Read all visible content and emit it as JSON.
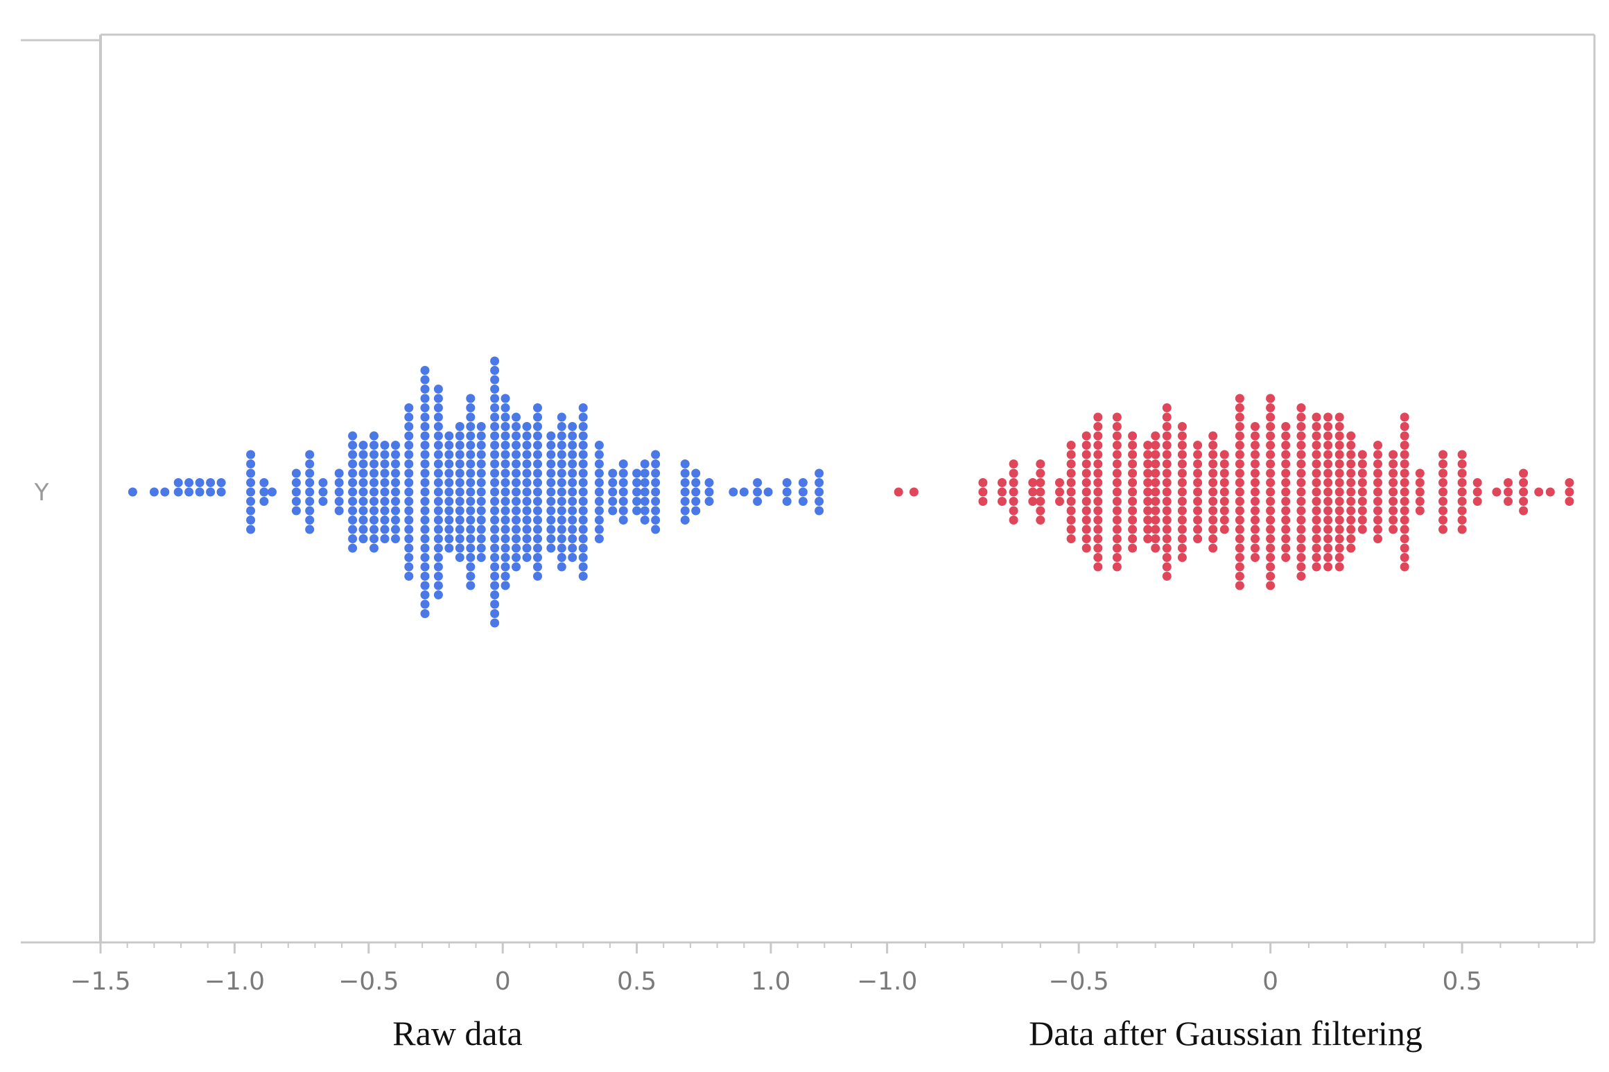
{
  "chart_data": {
    "type": "scatter",
    "ylabel": "Y",
    "colors": {
      "raw": "#4a78e6",
      "filtered": "#e0465a",
      "axis": "#c8c8c8",
      "tick_text": "#7a7a7a"
    },
    "panels": [
      {
        "caption": "Raw data",
        "color": "#4a78e6",
        "xlim": [
          -1.5,
          1.3
        ],
        "ticks": [
          {
            "v": -1.5,
            "label": "−1.5"
          },
          {
            "v": -1.0,
            "label": "−1.0"
          },
          {
            "v": -0.5,
            "label": "−0.5"
          },
          {
            "v": 0,
            "label": "0"
          },
          {
            "v": 0.5,
            "label": "0.5"
          },
          {
            "v": 1.0,
            "label": "1.0"
          }
        ],
        "bins": [
          [
            -1.38,
            1
          ],
          [
            -1.3,
            1
          ],
          [
            -1.26,
            1
          ],
          [
            -1.21,
            2
          ],
          [
            -1.17,
            2
          ],
          [
            -1.13,
            2
          ],
          [
            -1.09,
            2
          ],
          [
            -1.05,
            2
          ],
          [
            -0.94,
            9
          ],
          [
            -0.89,
            3
          ],
          [
            -0.86,
            1
          ],
          [
            -0.77,
            5
          ],
          [
            -0.72,
            9
          ],
          [
            -0.67,
            3
          ],
          [
            -0.61,
            5
          ],
          [
            -0.56,
            13
          ],
          [
            -0.52,
            11
          ],
          [
            -0.48,
            13
          ],
          [
            -0.44,
            11
          ],
          [
            -0.4,
            11
          ],
          [
            -0.35,
            19
          ],
          [
            -0.29,
            27
          ],
          [
            -0.24,
            23
          ],
          [
            -0.2,
            13
          ],
          [
            -0.16,
            15
          ],
          [
            -0.12,
            21
          ],
          [
            -0.08,
            15
          ],
          [
            -0.03,
            29
          ],
          [
            0.01,
            21
          ],
          [
            0.05,
            17
          ],
          [
            0.09,
            15
          ],
          [
            0.13,
            19
          ],
          [
            0.18,
            13
          ],
          [
            0.22,
            17
          ],
          [
            0.26,
            15
          ],
          [
            0.3,
            19
          ],
          [
            0.36,
            11
          ],
          [
            0.41,
            5
          ],
          [
            0.45,
            7
          ],
          [
            0.5,
            5
          ],
          [
            0.53,
            7
          ],
          [
            0.57,
            9
          ],
          [
            0.68,
            7
          ],
          [
            0.72,
            5
          ],
          [
            0.77,
            3
          ],
          [
            0.86,
            1
          ],
          [
            0.9,
            1
          ],
          [
            0.95,
            3
          ],
          [
            0.99,
            1
          ],
          [
            1.06,
            3
          ],
          [
            1.12,
            3
          ],
          [
            1.18,
            5
          ]
        ]
      },
      {
        "caption": "Data after Gaussian filtering",
        "color": "#e0465a",
        "xlim": [
          -1.05,
          0.8
        ],
        "ticks": [
          {
            "v": -1.0,
            "label": "−1.0"
          },
          {
            "v": -0.5,
            "label": "−0.5"
          },
          {
            "v": 0,
            "label": "0"
          },
          {
            "v": 0.5,
            "label": "0.5"
          }
        ],
        "bins": [
          [
            -0.97,
            1
          ],
          [
            -0.93,
            1
          ],
          [
            -0.75,
            3
          ],
          [
            -0.7,
            3
          ],
          [
            -0.67,
            7
          ],
          [
            -0.62,
            3
          ],
          [
            -0.6,
            7
          ],
          [
            -0.55,
            3
          ],
          [
            -0.52,
            11
          ],
          [
            -0.48,
            13
          ],
          [
            -0.45,
            17
          ],
          [
            -0.4,
            17
          ],
          [
            -0.36,
            13
          ],
          [
            -0.32,
            11
          ],
          [
            -0.3,
            13
          ],
          [
            -0.27,
            19
          ],
          [
            -0.23,
            15
          ],
          [
            -0.19,
            11
          ],
          [
            -0.15,
            13
          ],
          [
            -0.12,
            9
          ],
          [
            -0.08,
            21
          ],
          [
            -0.04,
            15
          ],
          [
            0.0,
            21
          ],
          [
            0.04,
            15
          ],
          [
            0.08,
            19
          ],
          [
            0.12,
            17
          ],
          [
            0.15,
            17
          ],
          [
            0.18,
            17
          ],
          [
            0.21,
            13
          ],
          [
            0.24,
            9
          ],
          [
            0.28,
            11
          ],
          [
            0.32,
            9
          ],
          [
            0.35,
            17
          ],
          [
            0.39,
            5
          ],
          [
            0.45,
            9
          ],
          [
            0.5,
            9
          ],
          [
            0.54,
            3
          ],
          [
            0.59,
            1
          ],
          [
            0.62,
            3
          ],
          [
            0.66,
            5
          ],
          [
            0.7,
            1
          ],
          [
            0.73,
            1
          ],
          [
            0.78,
            3
          ]
        ]
      }
    ]
  }
}
